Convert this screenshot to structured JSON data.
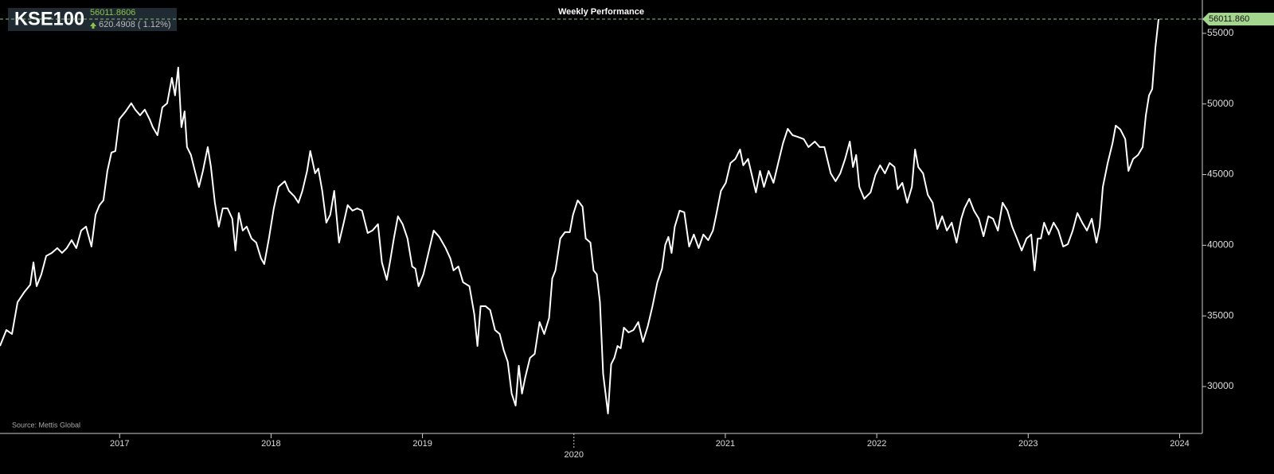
{
  "chart_data": {
    "type": "line",
    "title": "Weekly Performance",
    "source": "Source: Mettis Global",
    "last": 56011.8606,
    "change": "620.4908 ( 1.12%)",
    "tag": "56011.860",
    "xlim": [
      2016.21,
      2024.15
    ],
    "ylim": [
      26680,
      57360
    ],
    "xticks": [
      2017,
      2018,
      2019,
      2020,
      2021,
      2022,
      2023,
      2024
    ],
    "yticks": [
      30000,
      35000,
      40000,
      45000,
      50000,
      55000
    ],
    "x": [
      2016.21,
      2016.252,
      2016.289,
      2016.326,
      2016.368,
      2016.41,
      2016.431,
      2016.452,
      2016.483,
      2016.515,
      2016.552,
      2016.588,
      2016.62,
      2016.651,
      2016.683,
      2016.714,
      2016.746,
      2016.778,
      2016.814,
      2016.841,
      2016.867,
      2016.893,
      2016.919,
      2016.946,
      2016.972,
      2016.998,
      2017.04,
      2017.077,
      2017.103,
      2017.135,
      2017.166,
      2017.198,
      2017.219,
      2017.25,
      2017.282,
      2017.314,
      2017.345,
      2017.366,
      2017.387,
      2017.408,
      2017.429,
      2017.445,
      2017.471,
      2017.497,
      2017.524,
      2017.55,
      2017.582,
      2017.603,
      2017.629,
      2017.655,
      2017.681,
      2017.713,
      2017.744,
      2017.765,
      2017.787,
      2017.813,
      2017.839,
      2017.871,
      2017.902,
      2017.934,
      2017.955,
      2017.986,
      2018.018,
      2018.049,
      2018.091,
      2018.118,
      2018.154,
      2018.181,
      2018.207,
      2018.238,
      2018.259,
      2018.291,
      2018.312,
      2018.338,
      2018.365,
      2018.391,
      2018.417,
      2018.449,
      2018.48,
      2018.506,
      2018.538,
      2018.569,
      2018.601,
      2018.638,
      2018.669,
      2018.706,
      2018.732,
      2018.764,
      2018.785,
      2018.811,
      2018.838,
      2018.869,
      2018.901,
      2018.932,
      2018.953,
      2018.974,
      2019.006,
      2019.037,
      2019.074,
      2019.111,
      2019.153,
      2019.184,
      2019.205,
      2019.237,
      2019.268,
      2019.31,
      2019.342,
      2019.363,
      2019.384,
      2019.416,
      2019.447,
      2019.479,
      2019.51,
      2019.536,
      2019.563,
      2019.589,
      2019.615,
      2019.636,
      2019.657,
      2019.678,
      2019.71,
      2019.741,
      2019.773,
      2019.804,
      2019.836,
      2019.857,
      2019.878,
      2019.91,
      2019.941,
      2019.973,
      2019.994,
      2020.025,
      2020.057,
      2020.078,
      2020.109,
      2020.13,
      2020.151,
      2020.172,
      2020.193,
      2020.225,
      2020.246,
      2020.267,
      2020.288,
      2020.309,
      2020.33,
      2020.361,
      2020.393,
      2020.425,
      2020.456,
      2020.488,
      2020.519,
      2020.551,
      2020.582,
      2020.603,
      2020.624,
      2020.645,
      2020.666,
      2020.698,
      2020.729,
      2020.761,
      2020.792,
      2020.824,
      2020.855,
      2020.887,
      2020.918,
      2020.94,
      2020.971,
      2021.003,
      2021.034,
      2021.066,
      2021.097,
      2021.118,
      2021.15,
      2021.181,
      2021.202,
      2021.229,
      2021.255,
      2021.286,
      2021.318,
      2021.349,
      2021.381,
      2021.412,
      2021.444,
      2021.476,
      2021.518,
      2021.549,
      2021.591,
      2021.623,
      2021.654,
      2021.696,
      2021.728,
      2021.759,
      2021.791,
      2021.822,
      2021.843,
      2021.864,
      2021.885,
      2021.917,
      2021.959,
      2021.991,
      2022.022,
      2022.054,
      2022.085,
      2022.117,
      2022.138,
      2022.169,
      2022.201,
      2022.232,
      2022.253,
      2022.274,
      2022.306,
      2022.337,
      2022.369,
      2022.4,
      2022.432,
      2022.463,
      2022.495,
      2022.527,
      2022.558,
      2022.579,
      2022.611,
      2022.642,
      2022.674,
      2022.705,
      2022.737,
      2022.768,
      2022.8,
      2022.831,
      2022.863,
      2022.894,
      2022.926,
      2022.957,
      2022.989,
      2023.02,
      2023.042,
      2023.063,
      2023.084,
      2023.105,
      2023.136,
      2023.168,
      2023.199,
      2023.231,
      2023.262,
      2023.294,
      2023.325,
      2023.357,
      2023.388,
      2023.42,
      2023.451,
      2023.472,
      2023.493,
      2023.525,
      2023.557,
      2023.578,
      2023.609,
      2023.641,
      2023.662,
      2023.693,
      2023.725,
      2023.756,
      2023.777,
      2023.798,
      2023.819,
      2023.84,
      2023.861
    ],
    "series": [
      {
        "name": "KSE100",
        "color": "#ffffff",
        "values": [
          32870,
          34000,
          33720,
          35970,
          36650,
          37210,
          38790,
          37100,
          37940,
          39240,
          39460,
          39800,
          39460,
          39800,
          40360,
          39800,
          41040,
          41320,
          39910,
          42160,
          42840,
          43180,
          45260,
          46560,
          46670,
          48920,
          49480,
          50050,
          49600,
          49200,
          49600,
          48920,
          48360,
          47790,
          49760,
          50050,
          51850,
          50610,
          52580,
          48360,
          49480,
          46950,
          46390,
          45260,
          44130,
          45260,
          46950,
          45540,
          43010,
          41320,
          42610,
          42610,
          41880,
          39630,
          42280,
          41040,
          41320,
          40480,
          40190,
          39070,
          38670,
          40480,
          42610,
          44130,
          44530,
          43850,
          43460,
          43010,
          43850,
          45260,
          46670,
          45090,
          45430,
          43850,
          41600,
          42160,
          43850,
          40190,
          41600,
          42840,
          42450,
          42610,
          42450,
          40870,
          41040,
          41490,
          38790,
          37550,
          38790,
          40480,
          42050,
          41490,
          40480,
          38500,
          38340,
          37100,
          37940,
          39350,
          41040,
          40590,
          39800,
          39070,
          38220,
          38500,
          37380,
          37100,
          35130,
          32870,
          35690,
          35690,
          35410,
          34000,
          33720,
          32590,
          31750,
          29500,
          28650,
          31470,
          29500,
          30620,
          32030,
          32310,
          34560,
          33720,
          34850,
          37660,
          38220,
          40480,
          40930,
          40930,
          42160,
          43180,
          42730,
          40480,
          40190,
          38220,
          37940,
          35970,
          30900,
          28090,
          31580,
          32030,
          32870,
          32710,
          34170,
          33830,
          34000,
          34560,
          33160,
          34280,
          35690,
          37380,
          38340,
          40020,
          40590,
          39460,
          41320,
          42450,
          42330,
          39910,
          40760,
          39800,
          40760,
          40360,
          41040,
          42160,
          43850,
          44420,
          45820,
          46110,
          46780,
          45660,
          46110,
          44700,
          43740,
          45260,
          44130,
          45260,
          44420,
          45820,
          47230,
          48240,
          47790,
          47680,
          47510,
          46950,
          47340,
          46950,
          46950,
          45090,
          44530,
          45090,
          46110,
          47340,
          45540,
          46390,
          44130,
          43290,
          43740,
          44980,
          45660,
          45090,
          45820,
          45540,
          43970,
          44420,
          43010,
          44130,
          46780,
          45540,
          45090,
          43570,
          43010,
          41150,
          42050,
          41040,
          41600,
          40190,
          41880,
          42610,
          43290,
          42450,
          41880,
          40640,
          42050,
          41880,
          41040,
          43010,
          42450,
          41320,
          40480,
          39630,
          40480,
          40760,
          38220,
          40480,
          40480,
          41600,
          40760,
          41600,
          41040,
          39910,
          40080,
          41040,
          42280,
          41600,
          41040,
          41880,
          40190,
          41320,
          44130,
          45820,
          47230,
          48470,
          48190,
          47510,
          45260,
          46110,
          46390,
          46950,
          49200,
          50610,
          51060,
          53990,
          56010
        ]
      }
    ]
  }
}
